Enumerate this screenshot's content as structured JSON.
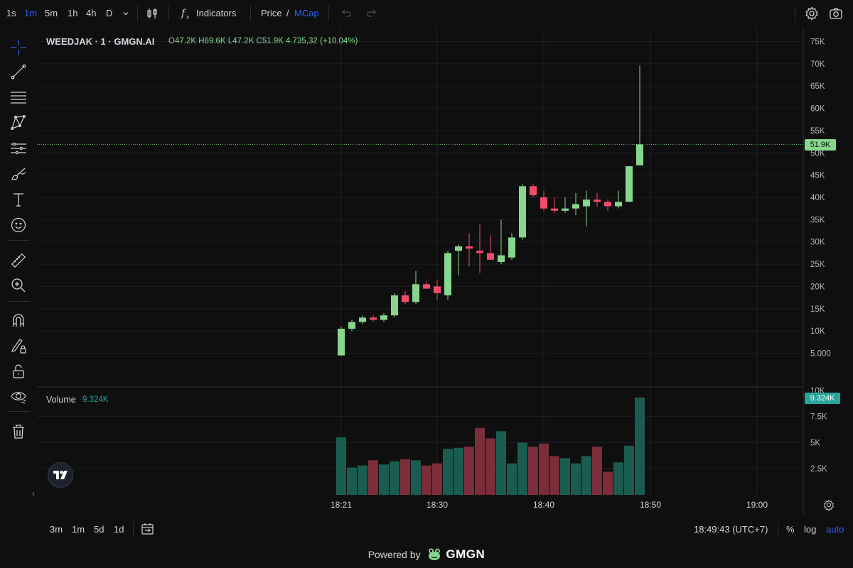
{
  "toolbar": {
    "timeframes": [
      {
        "label": "1s",
        "active": false
      },
      {
        "label": "1m",
        "active": true
      },
      {
        "label": "5m",
        "active": false
      },
      {
        "label": "1h",
        "active": false
      },
      {
        "label": "4h",
        "active": false
      },
      {
        "label": "D",
        "active": false
      }
    ],
    "indicators_label": "Indicators",
    "price_label": "Price",
    "slash": "/",
    "mcap_label": "MCap"
  },
  "left_tools": [
    "crosshair-icon",
    "trend-line-icon",
    "fib-levels-icon",
    "pattern-icon",
    "prediction-icon",
    "brush-icon",
    "text-icon",
    "emoji-icon",
    "ruler-icon",
    "zoom-in-icon",
    "magnet-icon",
    "lock-drawing-icon",
    "lock-icon",
    "eye-icon",
    "trash-icon"
  ],
  "legend": {
    "symbol": "WEEDJAK · 1 · GMGN.AI",
    "o_label": "O",
    "o": "47.2K",
    "h_label": "H",
    "h": "69.6K",
    "l_label": "L",
    "l": "47.2K",
    "c_label": "C",
    "c": "51.9K",
    "change": "4.735,32 (+10.04%)"
  },
  "volume_legend": {
    "label": "Volume",
    "value": "9.324K"
  },
  "price_tag": "51.9K",
  "volume_tag": "9.324K",
  "bottom": {
    "ranges": [
      "3m",
      "1m",
      "5d",
      "1d"
    ],
    "clock": "18:49:43 (UTC+7)",
    "percent": "%",
    "log": "log",
    "auto": "auto"
  },
  "powered_by": "Powered by",
  "brand": "GMGN",
  "colors": {
    "up": "#87d68d",
    "down": "#f14d6a",
    "vol_up": "#1a5c50",
    "vol_down": "#7c2d3a",
    "accent": "#2962ff",
    "background": "#0f0f0f"
  },
  "chart_data": {
    "type": "candlestick",
    "series_name": "WEEDJAK",
    "x_ticks": [
      "18:21",
      "18:30",
      "18:40",
      "18:50",
      "19:00"
    ],
    "y_ticks": [
      "75K",
      "70K",
      "65K",
      "60K",
      "55K",
      "50K",
      "45K",
      "40K",
      "35K",
      "30K",
      "25K",
      "20K",
      "15K",
      "10K",
      "5.000"
    ],
    "volume_ticks": [
      "10K",
      "7.5K",
      "5K",
      "2.5K"
    ],
    "ylim": [
      0,
      78000
    ],
    "volume_ylim": [
      0,
      10500
    ],
    "candles": [
      {
        "t": 0,
        "o": 4500,
        "h": 11000,
        "l": 4500,
        "c": 10500,
        "v": 5500
      },
      {
        "t": 1,
        "o": 10500,
        "h": 12500,
        "l": 10000,
        "c": 12000,
        "v": 2600
      },
      {
        "t": 2,
        "o": 12000,
        "h": 13500,
        "l": 11500,
        "c": 13000,
        "v": 2800
      },
      {
        "t": 3,
        "o": 13000,
        "h": 13500,
        "l": 12000,
        "c": 12500,
        "v": 3300
      },
      {
        "t": 4,
        "o": 12500,
        "h": 14000,
        "l": 12000,
        "c": 13500,
        "v": 2900
      },
      {
        "t": 5,
        "o": 13500,
        "h": 18500,
        "l": 13000,
        "c": 18000,
        "v": 3200
      },
      {
        "t": 6,
        "o": 18000,
        "h": 19000,
        "l": 16000,
        "c": 16500,
        "v": 3400
      },
      {
        "t": 7,
        "o": 16500,
        "h": 23500,
        "l": 16000,
        "c": 20500,
        "v": 3300
      },
      {
        "t": 8,
        "o": 20500,
        "h": 21000,
        "l": 19500,
        "c": 19500,
        "v": 2800
      },
      {
        "t": 9,
        "o": 20000,
        "h": 21500,
        "l": 17000,
        "c": 18500,
        "v": 3000
      },
      {
        "t": 10,
        "o": 18000,
        "h": 28000,
        "l": 17000,
        "c": 27500,
        "v": 4400
      },
      {
        "t": 11,
        "o": 28000,
        "h": 29500,
        "l": 22500,
        "c": 29000,
        "v": 4500
      },
      {
        "t": 12,
        "o": 29000,
        "h": 32000,
        "l": 24500,
        "c": 28500,
        "v": 4600
      },
      {
        "t": 13,
        "o": 28000,
        "h": 34000,
        "l": 23000,
        "c": 27500,
        "v": 6400
      },
      {
        "t": 14,
        "o": 27500,
        "h": 31500,
        "l": 26000,
        "c": 26000,
        "v": 5400
      },
      {
        "t": 15,
        "o": 25500,
        "h": 35000,
        "l": 25000,
        "c": 27000,
        "v": 6100
      },
      {
        "t": 16,
        "o": 26500,
        "h": 32000,
        "l": 26000,
        "c": 31000,
        "v": 3000
      },
      {
        "t": 17,
        "o": 31000,
        "h": 43000,
        "l": 30500,
        "c": 42500,
        "v": 5000
      },
      {
        "t": 18,
        "o": 42500,
        "h": 43000,
        "l": 40000,
        "c": 40500,
        "v": 4600
      },
      {
        "t": 19,
        "o": 40000,
        "h": 41500,
        "l": 37000,
        "c": 37500,
        "v": 4900
      },
      {
        "t": 20,
        "o": 37500,
        "h": 40000,
        "l": 36500,
        "c": 37000,
        "v": 3700
      },
      {
        "t": 21,
        "o": 37000,
        "h": 40000,
        "l": 36500,
        "c": 37500,
        "v": 3500
      },
      {
        "t": 22,
        "o": 37500,
        "h": 41000,
        "l": 36000,
        "c": 38500,
        "v": 3000
      },
      {
        "t": 23,
        "o": 38000,
        "h": 41500,
        "l": 33500,
        "c": 39500,
        "v": 3700
      },
      {
        "t": 24,
        "o": 39500,
        "h": 41000,
        "l": 38000,
        "c": 39000,
        "v": 4600
      },
      {
        "t": 25,
        "o": 39000,
        "h": 39500,
        "l": 37000,
        "c": 38000,
        "v": 2200
      },
      {
        "t": 26,
        "o": 38000,
        "h": 41500,
        "l": 37500,
        "c": 39000,
        "v": 3100
      },
      {
        "t": 27,
        "o": 39000,
        "h": 47000,
        "l": 39000,
        "c": 47000,
        "v": 4700
      },
      {
        "t": 28,
        "o": 47200,
        "h": 69600,
        "l": 47200,
        "c": 51900,
        "v": 9324
      }
    ]
  }
}
